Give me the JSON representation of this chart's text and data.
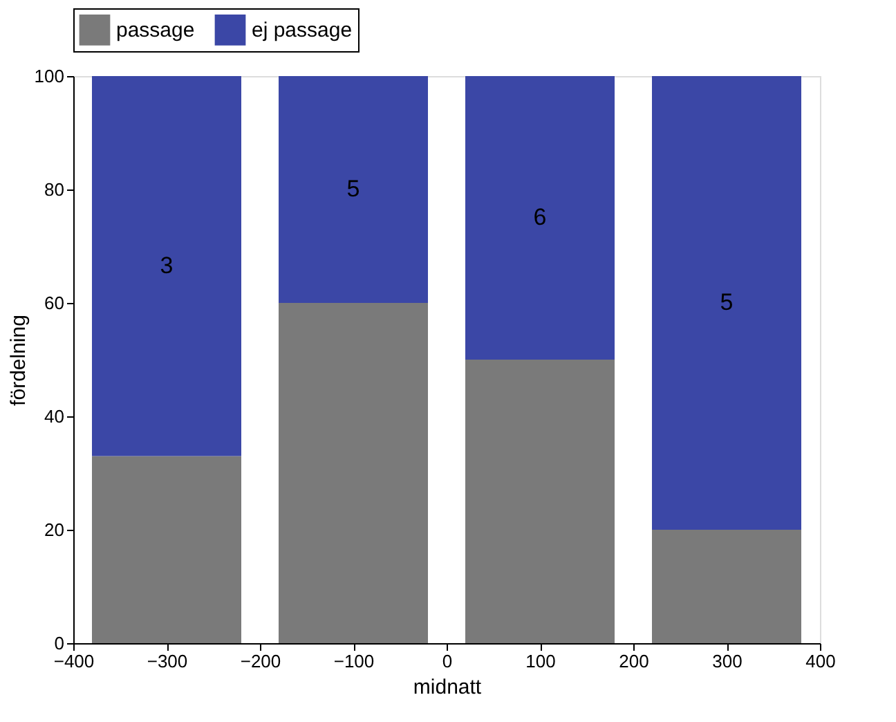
{
  "chart_data": {
    "type": "bar",
    "stacked": true,
    "xlabel": "midnatt",
    "ylabel": "fördelning",
    "x": [
      -300,
      -100,
      100,
      300
    ],
    "series": [
      {
        "name": "passage",
        "color": "#7a7a7a",
        "values": [
          33,
          60,
          50,
          20
        ]
      },
      {
        "name": "ej passage",
        "color": "#3b47a6",
        "values": [
          67,
          40,
          50,
          80
        ]
      }
    ],
    "annotations": [
      "3",
      "5",
      "6",
      "5"
    ],
    "xlim": [
      -400,
      400
    ],
    "xticks": [
      -400,
      -300,
      -200,
      -100,
      0,
      100,
      200,
      300,
      400
    ],
    "ylim": [
      0,
      100
    ],
    "yticks": [
      0,
      20,
      40,
      60,
      80,
      100
    ],
    "grid": false,
    "legend": "top"
  }
}
